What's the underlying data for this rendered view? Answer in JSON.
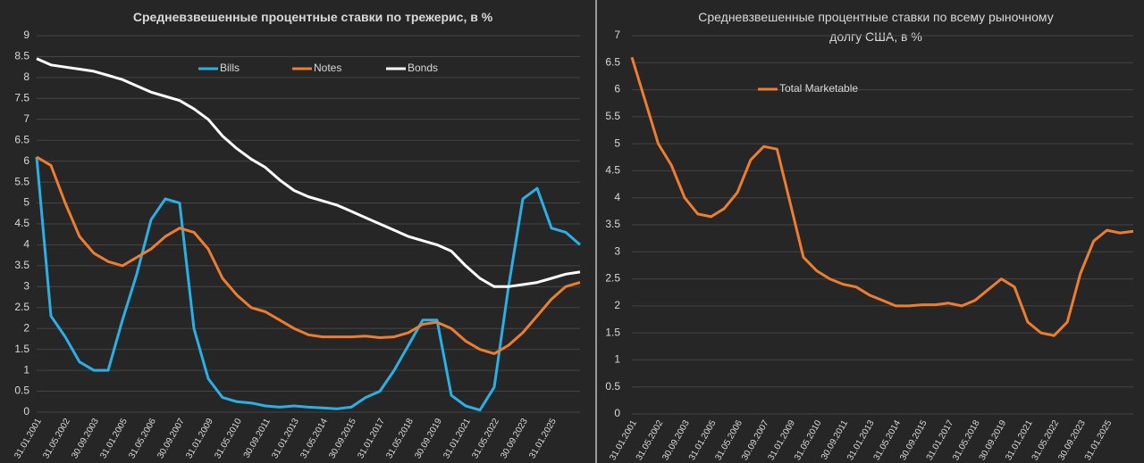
{
  "chart_data": [
    {
      "type": "line",
      "title": "Средневзвешенные процентные ставки по трежерис, в %",
      "categories": [
        "31.01.2001",
        null,
        "31.05.2002",
        null,
        "30.09.2003",
        null,
        "31.01.2005",
        null,
        "31.05.2006",
        null,
        "30.09.2007",
        null,
        "31.01.2009",
        null,
        "31.05.2010",
        null,
        "30.09.2011",
        null,
        "31.01.2013",
        null,
        "31.05.2014",
        null,
        "30.09.2015",
        null,
        "31.01.2017",
        null,
        "31.05.2018",
        null,
        "30.09.2019",
        null,
        "31.01.2021",
        null,
        "31.05.2022",
        null,
        "30.09.2023",
        null,
        "31.01.2025",
        null,
        null
      ],
      "series": [
        {
          "name": "Bills",
          "color": "#2ab0e4",
          "values": [
            6.1,
            2.3,
            1.8,
            1.2,
            1.0,
            1.0,
            2.2,
            3.3,
            4.6,
            5.1,
            5.0,
            2.0,
            0.8,
            0.35,
            0.25,
            0.22,
            0.15,
            0.12,
            0.15,
            0.12,
            0.1,
            0.08,
            0.12,
            0.35,
            0.5,
            1.0,
            1.6,
            2.2,
            2.2,
            0.4,
            0.15,
            0.05,
            0.6,
            3.0,
            5.1,
            5.35,
            4.4,
            4.3,
            4.0
          ]
        },
        {
          "name": "Notes",
          "color": "#ed7d31",
          "values": [
            6.1,
            5.9,
            5.0,
            4.2,
            3.8,
            3.6,
            3.5,
            3.7,
            3.9,
            4.2,
            4.4,
            4.3,
            3.9,
            3.2,
            2.8,
            2.5,
            2.4,
            2.2,
            2.0,
            1.85,
            1.8,
            1.8,
            1.8,
            1.82,
            1.78,
            1.8,
            1.9,
            2.1,
            2.15,
            2.0,
            1.7,
            1.5,
            1.4,
            1.6,
            1.9,
            2.3,
            2.7,
            3.0,
            3.1
          ]
        },
        {
          "name": "Bonds",
          "color": "#ffffff",
          "values": [
            8.45,
            8.3,
            8.25,
            8.2,
            8.15,
            8.05,
            7.95,
            7.8,
            7.65,
            7.55,
            7.45,
            7.25,
            7.0,
            6.6,
            6.3,
            6.05,
            5.85,
            5.55,
            5.3,
            5.15,
            5.05,
            4.95,
            4.8,
            4.65,
            4.5,
            4.35,
            4.2,
            4.1,
            4.0,
            3.85,
            3.5,
            3.2,
            3.0,
            3.0,
            3.05,
            3.1,
            3.2,
            3.3,
            3.35
          ]
        }
      ],
      "ylim": [
        0,
        9
      ],
      "yticks": [
        0,
        0.5,
        1,
        1.5,
        2,
        2.5,
        3,
        3.5,
        4,
        4.5,
        5,
        5.5,
        6,
        6.5,
        7,
        7.5,
        8,
        8.5,
        9
      ],
      "grid": true,
      "legend": "top"
    },
    {
      "type": "line",
      "title": "Средневзвешенные процентные ставки по всему рыночному долгу США, в %",
      "categories": [
        "31.01.2001",
        null,
        "31.05.2002",
        null,
        "30.09.2003",
        null,
        "31.01.2005",
        null,
        "31.05.2006",
        null,
        "30.09.2007",
        null,
        "31.01.2009",
        null,
        "31.05.2010",
        null,
        "30.09.2011",
        null,
        "31.01.2013",
        null,
        "31.05.2014",
        null,
        "30.09.2015",
        null,
        "31.01.2017",
        null,
        "31.05.2018",
        null,
        "30.09.2019",
        null,
        "31.01.2021",
        null,
        "31.05.2022",
        null,
        "30.09.2023",
        null,
        "31.01.2025",
        null,
        null
      ],
      "series": [
        {
          "name": "Total Marketable",
          "color": "#ed7d31",
          "values": [
            6.6,
            5.8,
            5.0,
            4.6,
            4.0,
            3.7,
            3.65,
            3.8,
            4.1,
            4.7,
            4.95,
            4.9,
            3.9,
            2.9,
            2.65,
            2.5,
            2.4,
            2.35,
            2.2,
            2.1,
            2.0,
            2.0,
            2.02,
            2.02,
            2.05,
            2.0,
            2.1,
            2.3,
            2.5,
            2.35,
            1.7,
            1.5,
            1.45,
            1.7,
            2.6,
            3.2,
            3.4,
            3.35,
            3.38
          ]
        }
      ],
      "ylim": [
        0,
        7
      ],
      "yticks": [
        0,
        0.5,
        1,
        1.5,
        2,
        2.5,
        3,
        3.5,
        4,
        4.5,
        5,
        5.5,
        6,
        6.5,
        7
      ],
      "grid": true,
      "legend": "upper left"
    }
  ]
}
